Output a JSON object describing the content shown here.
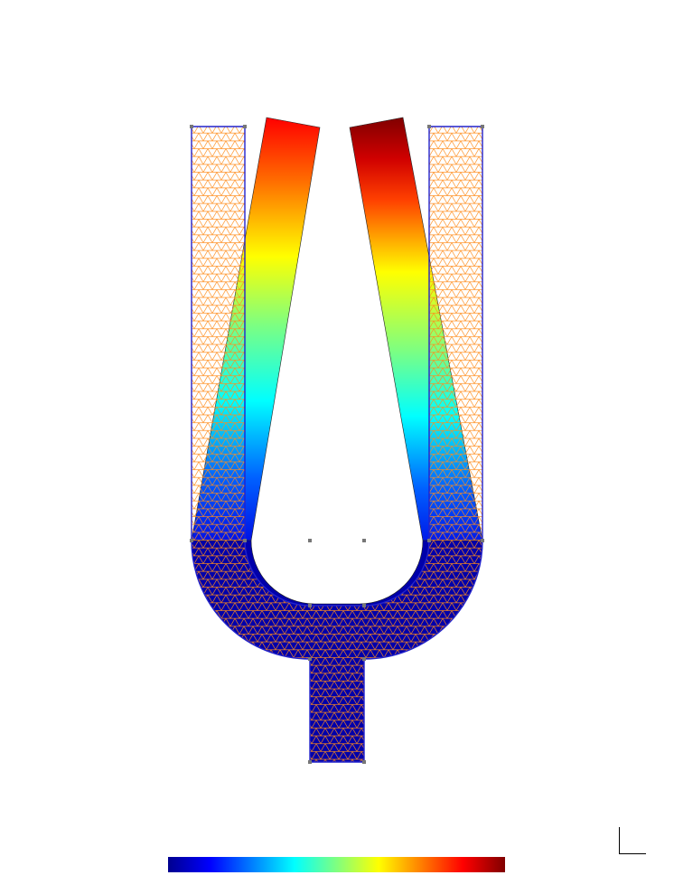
{
  "figure": {
    "colormap": {
      "name": "jet",
      "stops": [
        "#00008f",
        "#0000ff",
        "#00ffff",
        "#ffff00",
        "#ff0000",
        "#800000"
      ]
    },
    "mesh_colors": {
      "reference_outline": "#2222cc",
      "reference_mesh": "#ff8c1a",
      "vertex": "#777777",
      "deformed_edge": "#222222"
    },
    "displacement_min_fraction": 0.02,
    "displacement_max_fraction": 1.0
  }
}
